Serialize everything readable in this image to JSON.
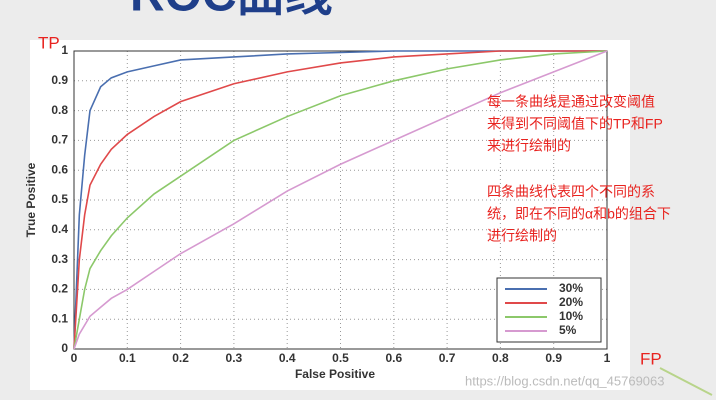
{
  "chart_data": {
    "type": "line",
    "title": "ROC曲线",
    "x_label": "False Positive",
    "y_label": "True Positive",
    "x": [
      0,
      0.01,
      0.02,
      0.03,
      0.05,
      0.07,
      0.1,
      0.15,
      0.2,
      0.3,
      0.4,
      0.5,
      0.6,
      0.7,
      0.8,
      0.9,
      1
    ],
    "series": [
      {
        "name": "30%",
        "color": "#4a6fb0",
        "values": [
          0,
          0.45,
          0.65,
          0.8,
          0.88,
          0.91,
          0.93,
          0.95,
          0.97,
          0.98,
          0.99,
          0.995,
          1,
          1,
          1,
          1,
          1
        ]
      },
      {
        "name": "20%",
        "color": "#e0494a",
        "values": [
          0,
          0.3,
          0.45,
          0.55,
          0.62,
          0.67,
          0.72,
          0.78,
          0.83,
          0.89,
          0.93,
          0.96,
          0.98,
          0.99,
          1,
          1,
          1
        ]
      },
      {
        "name": "10%",
        "color": "#8cc86a",
        "values": [
          0,
          0.1,
          0.2,
          0.27,
          0.33,
          0.38,
          0.44,
          0.52,
          0.58,
          0.7,
          0.78,
          0.85,
          0.9,
          0.94,
          0.97,
          0.99,
          1
        ]
      },
      {
        "name": "5%",
        "color": "#d69ad0",
        "values": [
          0,
          0.05,
          0.08,
          0.11,
          0.14,
          0.17,
          0.2,
          0.26,
          0.32,
          0.42,
          0.53,
          0.62,
          0.7,
          0.78,
          0.86,
          0.93,
          1
        ]
      }
    ],
    "xlim": [
      0,
      1
    ],
    "ylim": [
      0,
      1
    ],
    "xticks": [
      0,
      0.1,
      0.2,
      0.3,
      0.4,
      0.5,
      0.6,
      0.7,
      0.8,
      0.9,
      1
    ],
    "yticks": [
      0,
      0.1,
      0.2,
      0.3,
      0.4,
      0.5,
      0.6,
      0.7,
      0.8,
      0.9,
      1
    ],
    "grid": true,
    "legend": "lower right",
    "axis_markers": {
      "y": "TP",
      "x": "FP"
    },
    "annotations": [
      "每一条曲线是通过改变阈值",
      "来得到不同阈值下的TP和FP",
      "来进行绘制的",
      "四条曲线代表四个不同的系",
      "统，即在不同的α和b的组合下",
      "进行绘制的"
    ],
    "watermark": "https://blog.csdn.net/qq_45769063"
  }
}
